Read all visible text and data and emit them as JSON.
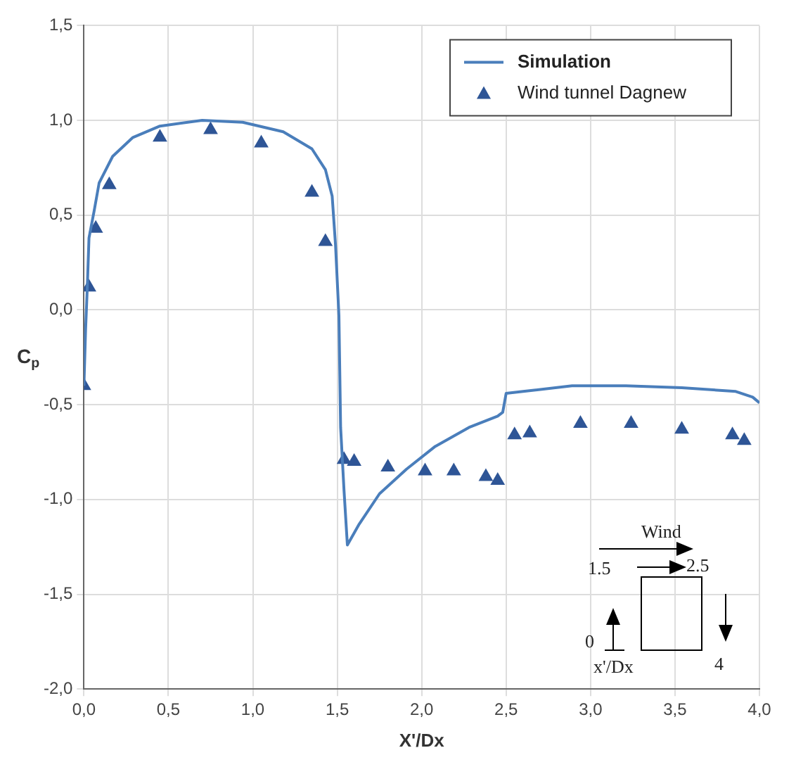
{
  "chart_data": {
    "type": "line",
    "xlabel": "X'/Dx",
    "ylabel": "C$_{p}$",
    "xlim": [
      0,
      4
    ],
    "ylim": [
      -2,
      1.5
    ],
    "xticks": [
      {
        "value": 0,
        "label": "0,0"
      },
      {
        "value": 0.5,
        "label": "0,5"
      },
      {
        "value": 1,
        "label": "1,0"
      },
      {
        "value": 1.5,
        "label": "1,5"
      },
      {
        "value": 2,
        "label": "2,0"
      },
      {
        "value": 2.5,
        "label": "2,5"
      },
      {
        "value": 3,
        "label": "3,0"
      },
      {
        "value": 3.5,
        "label": "3,5"
      },
      {
        "value": 4,
        "label": "4,0"
      }
    ],
    "yticks": [
      {
        "value": -2,
        "label": "-2,0"
      },
      {
        "value": -1.5,
        "label": "-1,5"
      },
      {
        "value": -1,
        "label": "-1,0"
      },
      {
        "value": -0.5,
        "label": "-0,5"
      },
      {
        "value": 0,
        "label": "0,0"
      },
      {
        "value": 0.5,
        "label": "0,5"
      },
      {
        "value": 1,
        "label": "1,0"
      },
      {
        "value": 1.5,
        "label": "1,5"
      }
    ],
    "grid": true,
    "legend": "top right",
    "series": [
      {
        "name": "Simulation",
        "type": "line",
        "marker": "none",
        "line_style": "solid",
        "color": "#4a7ebb",
        "x": [
          0,
          0.01,
          0.02,
          0.03,
          0.06,
          0.09,
          0.17,
          0.29,
          0.45,
          0.7,
          0.94,
          1.18,
          1.35,
          1.43,
          1.47,
          1.49,
          1.51,
          1.52,
          1.54,
          1.56,
          1.63,
          1.75,
          1.91,
          2.08,
          2.28,
          2.45,
          2.48,
          2.5,
          2.6,
          2.89,
          3.21,
          3.54,
          3.86,
          3.96,
          4
        ],
        "values": [
          -0.4,
          -0.1,
          0.12,
          0.38,
          0.52,
          0.67,
          0.81,
          0.91,
          0.97,
          1.0,
          0.99,
          0.94,
          0.85,
          0.74,
          0.6,
          0.34,
          -0.03,
          -0.62,
          -0.95,
          -1.24,
          -1.13,
          -0.97,
          -0.84,
          -0.72,
          -0.62,
          -0.56,
          -0.54,
          -0.44,
          -0.43,
          -0.4,
          -0.4,
          -0.41,
          -0.43,
          -0.46,
          -0.49
        ]
      },
      {
        "name": "Wind tunnel Dagnew",
        "type": "scatter",
        "marker": "triangle",
        "color": "#2e5596",
        "x": [
          0,
          0.03,
          0.07,
          0.15,
          0.45,
          0.75,
          1.05,
          1.35,
          1.43,
          1.54,
          1.6,
          1.8,
          2.02,
          2.19,
          2.38,
          2.45,
          2.55,
          2.64,
          2.94,
          3.24,
          3.54,
          3.84,
          3.91
        ],
        "values": [
          -0.4,
          0.12,
          0.43,
          0.66,
          0.91,
          0.95,
          0.88,
          0.62,
          0.36,
          -0.79,
          -0.8,
          -0.83,
          -0.85,
          -0.85,
          -0.88,
          -0.9,
          -0.66,
          -0.65,
          -0.6,
          -0.6,
          -0.63,
          -0.66,
          -0.69
        ]
      }
    ],
    "annotations": [
      "Wind",
      "1.5",
      "2.5",
      "0",
      "4",
      "x'/Dx"
    ]
  }
}
